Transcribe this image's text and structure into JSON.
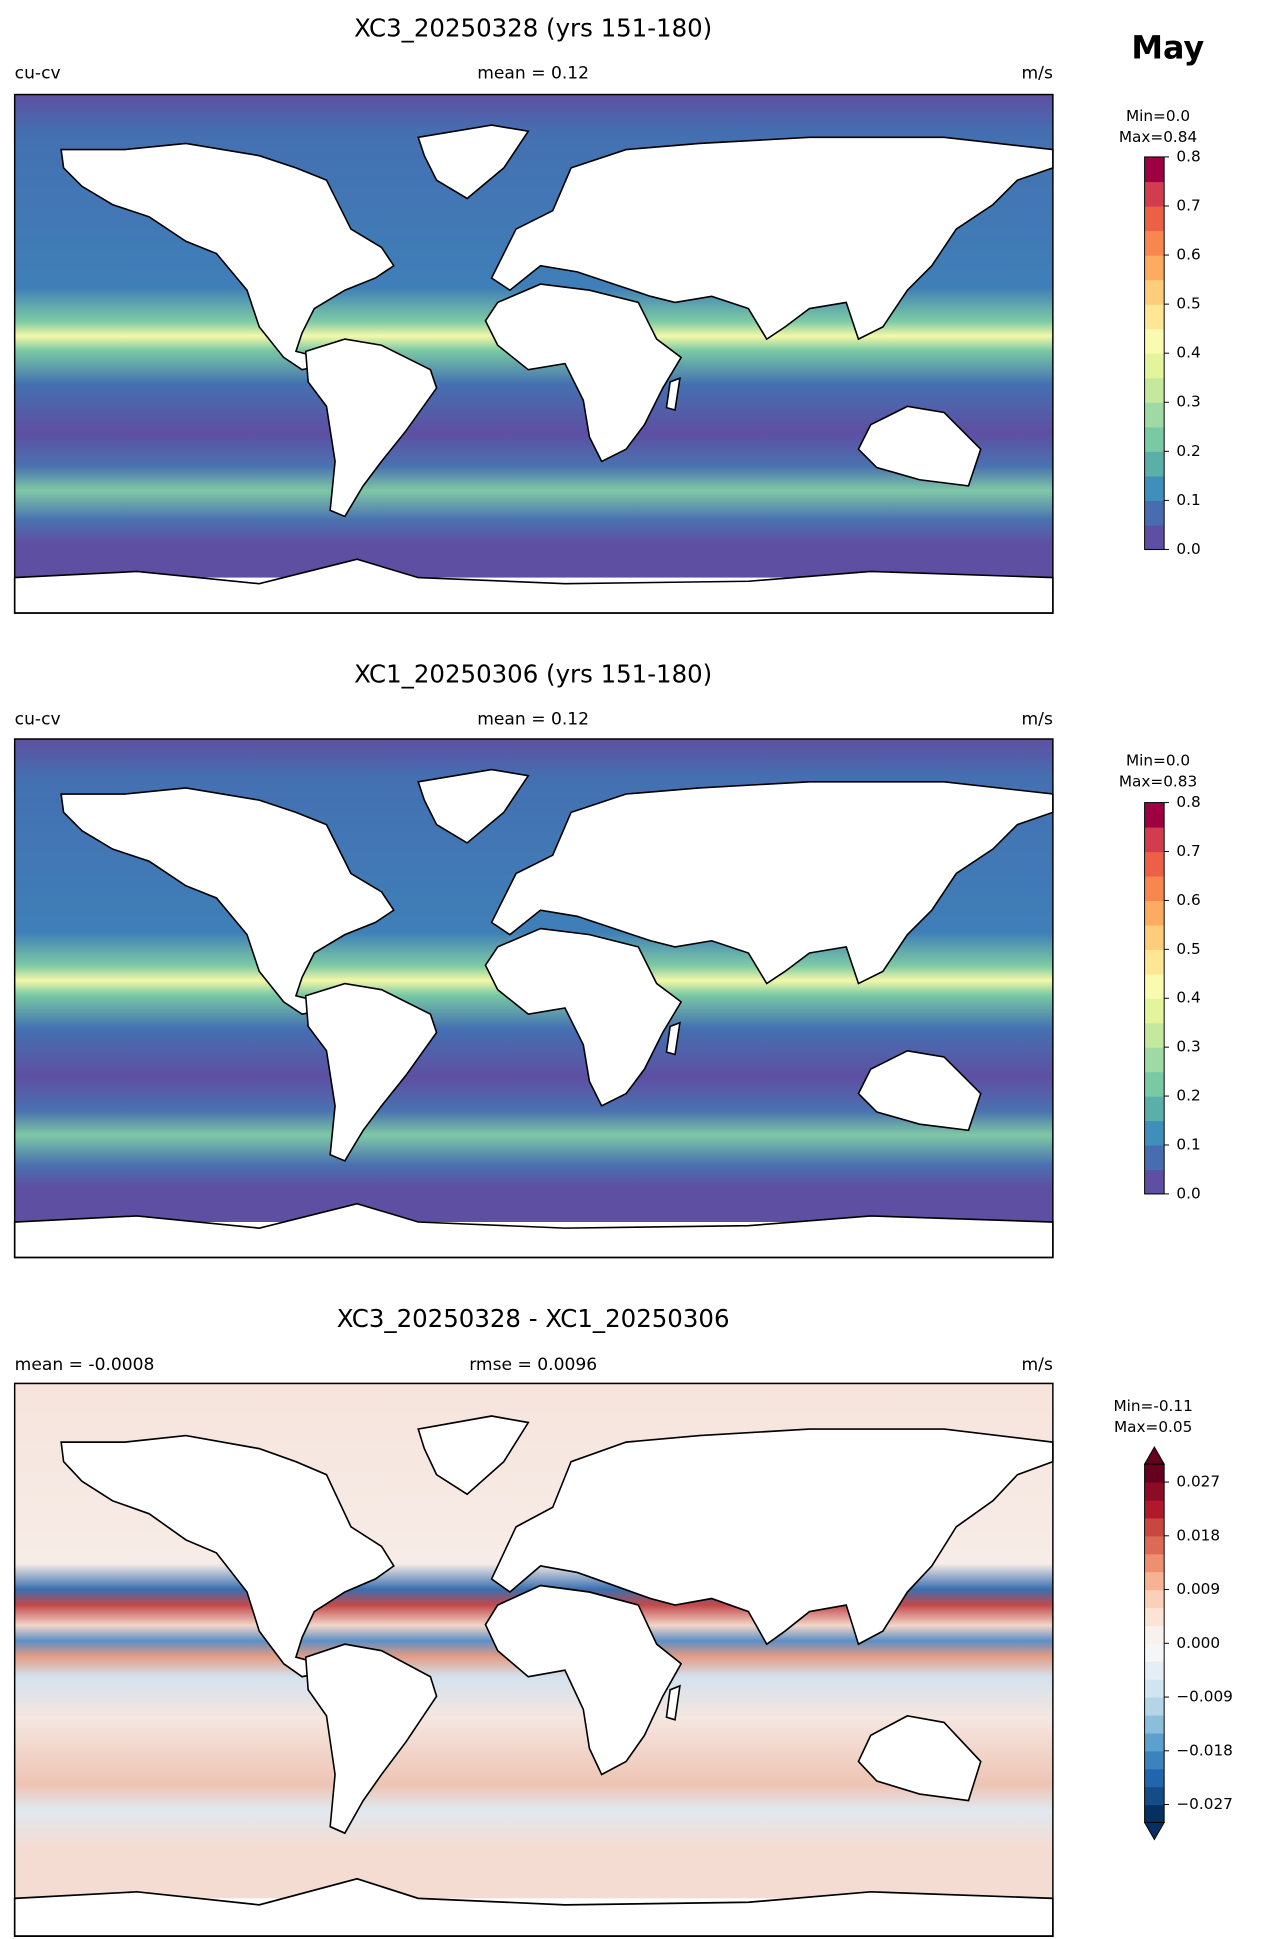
{
  "month": "May",
  "panels": [
    {
      "title": "XC3_20250328 (yrs 151-180)",
      "left_label": "cu-cv",
      "center_label": "mean = 0.12",
      "right_label": "m/s",
      "colorbar": {
        "min_label": "Min=0.0",
        "max_label": "Max=0.84",
        "range": [
          0,
          0.8
        ],
        "colors": [
          "#5e4fa2",
          "#486cb0",
          "#3f8fbb",
          "#5aafa9",
          "#79c9a4",
          "#9fd9a4",
          "#c4e89e",
          "#e4f49a",
          "#f9fbb0",
          "#fee695",
          "#fdcd7b",
          "#fdab61",
          "#f8864f",
          "#ec6146",
          "#d23c4f",
          "#9e0142"
        ],
        "ticks": [
          {
            "value": 0,
            "label": "0.0"
          },
          0.1,
          0.2,
          0.3,
          0.4,
          0.5,
          0.6,
          0.7,
          0.8
        ]
      }
    },
    {
      "title": "XC1_20250306 (yrs 151-180)",
      "left_label": "cu-cv",
      "center_label": "mean = 0.12",
      "right_label": "m/s",
      "colorbar": {
        "min_label": "Min=0.0",
        "max_label": "Max=0.83",
        "range": [
          0,
          0.8
        ],
        "colors": [
          "#5e4fa2",
          "#486cb0",
          "#3f8fbb",
          "#5aafa9",
          "#79c9a4",
          "#9fd9a4",
          "#c4e89e",
          "#e4f49a",
          "#f9fbb0",
          "#fee695",
          "#fdcd7b",
          "#fdab61",
          "#f8864f",
          "#ec6146",
          "#d23c4f",
          "#9e0142"
        ],
        "ticks": [
          {
            "value": 0,
            "label": "0.0"
          },
          0.1,
          0.2,
          0.3,
          0.4,
          0.5,
          0.6,
          0.7,
          0.8
        ]
      }
    },
    {
      "title": "XC3_20250328 - XC1_20250306",
      "left_label": "mean = -0.0008",
      "center_label": "rmse = 0.0096",
      "right_label": "m/s",
      "colorbar": {
        "min_label": "Min=-0.11",
        "max_label": "Max=0.05",
        "range": [
          -0.03,
          0.03
        ],
        "extend": "both",
        "colors": [
          "#053061",
          "#134c87",
          "#2166ac",
          "#3a83bb",
          "#5d9fcd",
          "#8bbedb",
          "#b3d5e7",
          "#d1e5f0",
          "#e4eef4",
          "#f4f6f7",
          "#f8f1ee",
          "#fbe3d6",
          "#fbd0b9",
          "#f6b293",
          "#ee9070",
          "#dd6a56",
          "#c94741",
          "#b2182b",
          "#8c0c25",
          "#67001f"
        ],
        "ticks": [
          {
            "value": -0.027,
            "label": "−0.027"
          },
          {
            "value": -0.018,
            "label": "−0.018"
          },
          {
            "value": -0.009,
            "label": "−0.009"
          },
          {
            "value": 0,
            "label": "0.000"
          },
          0.009,
          0.018,
          0.027
        ]
      }
    }
  ]
}
